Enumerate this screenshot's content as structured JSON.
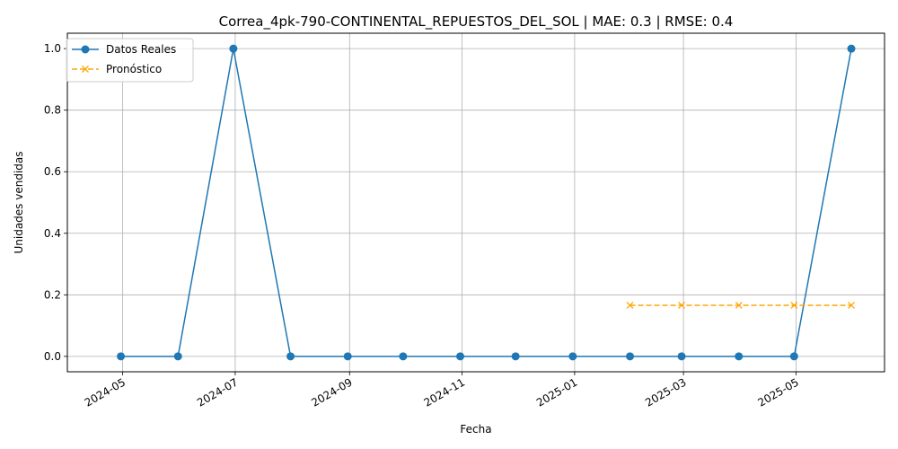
{
  "chart_data": {
    "type": "line",
    "title": "Correa_4pk-790-CONTINENTAL_REPUESTOS_DEL_SOL | MAE: 0.3 | RMSE: 0.4",
    "xlabel": "Fecha",
    "ylabel": "Unidades vendidas",
    "xlim": [
      "2024-04-01",
      "2025-06-18"
    ],
    "ylim": [
      -0.05,
      1.05
    ],
    "grid": true,
    "legend_position": "top-left",
    "x_ticks": [
      "2024-05",
      "2024-07",
      "2024-09",
      "2024-11",
      "2025-01",
      "2025-03",
      "2025-05"
    ],
    "x_tick_dates": [
      "2024-05-01",
      "2024-07-01",
      "2024-09-01",
      "2024-11-01",
      "2025-01-01",
      "2025-03-01",
      "2025-05-01"
    ],
    "y_ticks": [
      "0.0",
      "0.2",
      "0.4",
      "0.6",
      "0.8",
      "1.0"
    ],
    "y_tick_values": [
      0.0,
      0.2,
      0.4,
      0.6,
      0.8,
      1.0
    ],
    "series": [
      {
        "name": "Datos Reales",
        "color": "#1f77b4",
        "marker": "circle",
        "line_style": "solid",
        "x": [
          "2024-04-30",
          "2024-05-31",
          "2024-06-30",
          "2024-07-31",
          "2024-08-31",
          "2024-09-30",
          "2024-10-31",
          "2024-11-30",
          "2024-12-31",
          "2025-01-31",
          "2025-02-28",
          "2025-03-31",
          "2025-04-30",
          "2025-05-31"
        ],
        "values": [
          0,
          0,
          1,
          0,
          0,
          0,
          0,
          0,
          0,
          0,
          0,
          0,
          0,
          1
        ]
      },
      {
        "name": "Pronóstico",
        "color": "#ffa500",
        "marker": "x",
        "line_style": "dashed",
        "x": [
          "2025-01-31",
          "2025-02-28",
          "2025-03-31",
          "2025-04-30",
          "2025-05-31"
        ],
        "values": [
          0.166,
          0.166,
          0.166,
          0.166,
          0.166
        ]
      }
    ]
  }
}
